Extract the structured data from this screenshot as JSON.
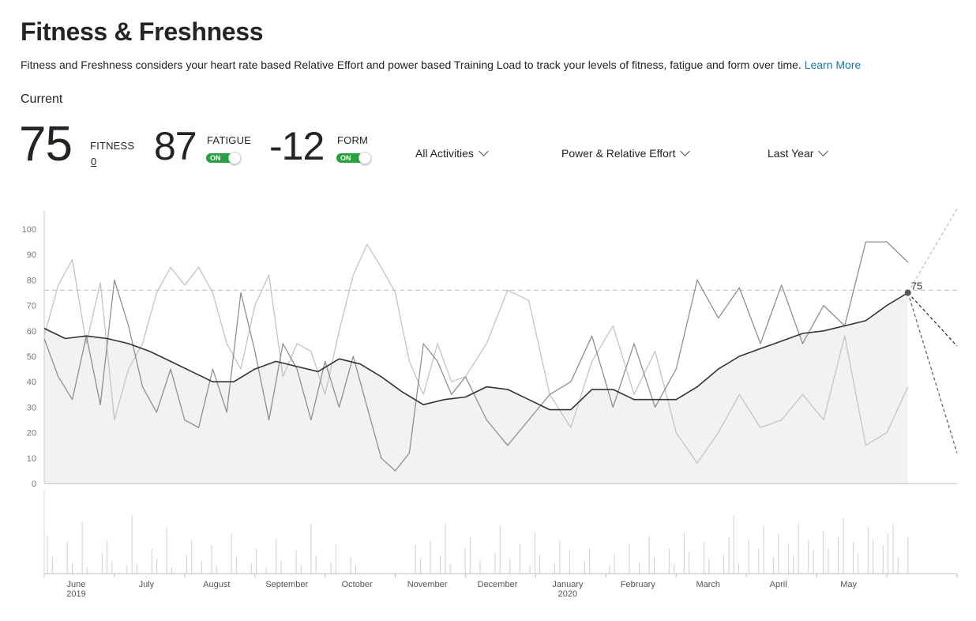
{
  "page": {
    "title": "Fitness & Freshness",
    "description": "Fitness and Freshness considers your heart rate based Relative Effort and power based Training Load to track your levels of fitness, fatigue and form over time.",
    "learn_more": "Learn More",
    "current_label": "Current"
  },
  "metrics": {
    "fitness": {
      "value": "75",
      "label": "FITNESS",
      "sub": "0"
    },
    "fatigue": {
      "value": "87",
      "label": "FATIGUE",
      "toggle": "ON"
    },
    "form": {
      "value": "-12",
      "label": "FORM",
      "toggle": "ON"
    }
  },
  "filters": {
    "activities": "All Activities",
    "load_type": "Power & Relative Effort",
    "range": "Last Year"
  },
  "chart_data": {
    "type": "line",
    "ylim": [
      0,
      100
    ],
    "yticks": [
      0,
      10,
      20,
      30,
      40,
      50,
      60,
      70,
      80,
      90,
      100
    ],
    "current_marker": {
      "value": 75,
      "label": "75"
    },
    "reference_line": 76,
    "x_ticks": [
      {
        "label": "June",
        "sub": "2019",
        "month": 0.5
      },
      {
        "label": "July",
        "sub": "",
        "month": 1.5
      },
      {
        "label": "August",
        "sub": "",
        "month": 2.5
      },
      {
        "label": "September",
        "sub": "",
        "month": 3.5
      },
      {
        "label": "October",
        "sub": "",
        "month": 4.5
      },
      {
        "label": "November",
        "sub": "",
        "month": 5.5
      },
      {
        "label": "December",
        "sub": "",
        "month": 6.5
      },
      {
        "label": "January",
        "sub": "2020",
        "month": 7.5
      },
      {
        "label": "February",
        "sub": "",
        "month": 8.5
      },
      {
        "label": "March",
        "sub": "",
        "month": 9.5
      },
      {
        "label": "April",
        "sub": "",
        "month": 10.5
      },
      {
        "label": "May",
        "sub": "",
        "month": 11.5
      }
    ],
    "fitness_series": [
      [
        0,
        61
      ],
      [
        0.3,
        57
      ],
      [
        0.6,
        58
      ],
      [
        0.9,
        57
      ],
      [
        1.2,
        55
      ],
      [
        1.5,
        52
      ],
      [
        1.8,
        48
      ],
      [
        2.1,
        44
      ],
      [
        2.4,
        40
      ],
      [
        2.7,
        40
      ],
      [
        3.0,
        45
      ],
      [
        3.3,
        48
      ],
      [
        3.6,
        46
      ],
      [
        3.9,
        44
      ],
      [
        4.2,
        49
      ],
      [
        4.5,
        47
      ],
      [
        4.8,
        42
      ],
      [
        5.1,
        36
      ],
      [
        5.4,
        31
      ],
      [
        5.7,
        33
      ],
      [
        6.0,
        34
      ],
      [
        6.3,
        38
      ],
      [
        6.6,
        37
      ],
      [
        6.9,
        33
      ],
      [
        7.2,
        29
      ],
      [
        7.5,
        29
      ],
      [
        7.8,
        37
      ],
      [
        8.1,
        37
      ],
      [
        8.4,
        33
      ],
      [
        8.7,
        33
      ],
      [
        9.0,
        33
      ],
      [
        9.3,
        38
      ],
      [
        9.6,
        45
      ],
      [
        9.9,
        50
      ],
      [
        10.2,
        53
      ],
      [
        10.5,
        56
      ],
      [
        10.8,
        59
      ],
      [
        11.1,
        60
      ],
      [
        11.4,
        62
      ],
      [
        11.7,
        64
      ],
      [
        12.0,
        70
      ],
      [
        12.3,
        75
      ]
    ],
    "fatigue_series": [
      [
        0,
        57
      ],
      [
        0.2,
        42
      ],
      [
        0.4,
        33
      ],
      [
        0.6,
        58
      ],
      [
        0.8,
        31
      ],
      [
        1.0,
        80
      ],
      [
        1.2,
        62
      ],
      [
        1.4,
        38
      ],
      [
        1.6,
        28
      ],
      [
        1.8,
        45
      ],
      [
        2.0,
        25
      ],
      [
        2.2,
        22
      ],
      [
        2.4,
        45
      ],
      [
        2.6,
        28
      ],
      [
        2.8,
        75
      ],
      [
        3.0,
        52
      ],
      [
        3.2,
        25
      ],
      [
        3.4,
        55
      ],
      [
        3.6,
        45
      ],
      [
        3.8,
        25
      ],
      [
        4.0,
        48
      ],
      [
        4.2,
        30
      ],
      [
        4.4,
        50
      ],
      [
        4.6,
        30
      ],
      [
        4.8,
        10
      ],
      [
        5.0,
        5
      ],
      [
        5.2,
        12
      ],
      [
        5.4,
        55
      ],
      [
        5.6,
        48
      ],
      [
        5.8,
        35
      ],
      [
        6.0,
        42
      ],
      [
        6.3,
        25
      ],
      [
        6.6,
        15
      ],
      [
        6.9,
        25
      ],
      [
        7.2,
        35
      ],
      [
        7.5,
        40
      ],
      [
        7.8,
        58
      ],
      [
        8.1,
        30
      ],
      [
        8.4,
        55
      ],
      [
        8.7,
        30
      ],
      [
        9.0,
        45
      ],
      [
        9.3,
        80
      ],
      [
        9.6,
        65
      ],
      [
        9.9,
        77
      ],
      [
        10.2,
        55
      ],
      [
        10.5,
        78
      ],
      [
        10.8,
        55
      ],
      [
        11.1,
        70
      ],
      [
        11.4,
        62
      ],
      [
        11.7,
        95
      ],
      [
        12.0,
        95
      ],
      [
        12.3,
        87
      ]
    ],
    "form_series": [
      [
        0,
        58
      ],
      [
        0.2,
        78
      ],
      [
        0.4,
        88
      ],
      [
        0.6,
        55
      ],
      [
        0.8,
        79
      ],
      [
        1.0,
        25
      ],
      [
        1.2,
        45
      ],
      [
        1.4,
        55
      ],
      [
        1.6,
        75
      ],
      [
        1.8,
        85
      ],
      [
        2.0,
        78
      ],
      [
        2.2,
        85
      ],
      [
        2.4,
        75
      ],
      [
        2.6,
        55
      ],
      [
        2.8,
        45
      ],
      [
        3.0,
        70
      ],
      [
        3.2,
        82
      ],
      [
        3.4,
        42
      ],
      [
        3.6,
        55
      ],
      [
        3.8,
        52
      ],
      [
        4.0,
        35
      ],
      [
        4.2,
        60
      ],
      [
        4.4,
        82
      ],
      [
        4.6,
        94
      ],
      [
        4.8,
        85
      ],
      [
        5.0,
        75
      ],
      [
        5.2,
        48
      ],
      [
        5.4,
        35
      ],
      [
        5.6,
        55
      ],
      [
        5.8,
        40
      ],
      [
        6.0,
        42
      ],
      [
        6.3,
        55
      ],
      [
        6.6,
        76
      ],
      [
        6.9,
        72
      ],
      [
        7.2,
        35
      ],
      [
        7.5,
        22
      ],
      [
        7.8,
        48
      ],
      [
        8.1,
        62
      ],
      [
        8.4,
        35
      ],
      [
        8.7,
        52
      ],
      [
        9.0,
        20
      ],
      [
        9.3,
        8
      ],
      [
        9.6,
        20
      ],
      [
        9.9,
        35
      ],
      [
        10.2,
        22
      ],
      [
        10.5,
        25
      ],
      [
        10.8,
        35
      ],
      [
        11.1,
        25
      ],
      [
        11.4,
        58
      ],
      [
        11.7,
        15
      ],
      [
        12.0,
        20
      ],
      [
        12.3,
        38
      ]
    ],
    "projection": {
      "fitness": [
        [
          12.3,
          75
        ],
        [
          13.0,
          54
        ]
      ],
      "fatigue": [
        [
          12.3,
          75
        ],
        [
          13.0,
          12
        ]
      ],
      "form": [
        [
          12.3,
          75
        ],
        [
          13.0,
          108
        ]
      ]
    },
    "activity_bars": [
      45,
      20,
      0,
      0,
      38,
      12,
      0,
      62,
      8,
      0,
      0,
      25,
      40,
      15,
      0,
      0,
      10,
      70,
      12,
      0,
      0,
      30,
      18,
      0,
      55,
      8,
      0,
      0,
      22,
      40,
      0,
      15,
      0,
      35,
      10,
      0,
      0,
      48,
      20,
      0,
      0,
      12,
      30,
      0,
      8,
      0,
      42,
      16,
      0,
      0,
      28,
      10,
      0,
      60,
      22,
      0,
      0,
      14,
      36,
      0,
      0,
      20,
      10,
      0,
      0,
      0,
      0,
      0,
      0,
      0,
      0,
      0,
      0,
      0,
      35,
      18,
      0,
      40,
      0,
      22,
      60,
      12,
      0,
      0,
      30,
      44,
      0,
      15,
      0,
      0,
      25,
      58,
      0,
      18,
      0,
      36,
      0,
      10,
      50,
      22,
      0,
      0,
      12,
      40,
      0,
      28,
      0,
      0,
      16,
      30,
      0,
      0,
      0,
      10,
      24,
      0,
      0,
      36,
      0,
      14,
      0,
      45,
      20,
      0,
      0,
      30,
      12,
      0,
      50,
      26,
      0,
      0,
      38,
      18,
      0,
      0,
      22,
      44,
      70,
      12,
      0,
      40,
      0,
      30,
      58,
      0,
      20,
      48,
      0,
      36,
      22,
      60,
      0,
      40,
      28,
      0,
      52,
      30,
      0,
      44,
      66,
      0,
      38,
      24,
      0,
      56,
      40,
      0,
      34,
      48,
      60,
      20,
      0,
      44
    ]
  }
}
